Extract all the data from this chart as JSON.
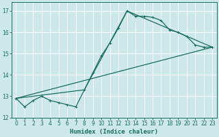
{
  "title": "",
  "xlabel": "Humidex (Indice chaleur)",
  "xlim": [
    -0.5,
    23.5
  ],
  "ylim": [
    12.0,
    17.4
  ],
  "yticks": [
    12,
    13,
    14,
    15,
    16,
    17
  ],
  "xticks": [
    0,
    1,
    2,
    3,
    4,
    5,
    6,
    7,
    8,
    9,
    10,
    11,
    12,
    13,
    14,
    15,
    16,
    17,
    18,
    19,
    20,
    21,
    22,
    23
  ],
  "background_color": "#cce8e8",
  "grid_color": "#ffffff",
  "line_color": "#1a6b5a",
  "curve1_x": [
    0,
    1,
    2,
    3,
    4,
    5,
    6,
    7,
    8,
    9,
    10,
    11,
    12,
    13,
    14,
    15,
    16,
    17,
    18,
    19,
    20,
    21,
    22,
    23
  ],
  "curve1_y": [
    12.9,
    12.5,
    12.8,
    13.0,
    12.8,
    12.7,
    12.6,
    12.5,
    13.3,
    14.1,
    14.9,
    15.5,
    16.2,
    17.0,
    16.75,
    16.75,
    16.7,
    16.55,
    16.1,
    16.0,
    15.8,
    15.4,
    15.3,
    15.3
  ],
  "line1_x": [
    0,
    23
  ],
  "line1_y": [
    12.9,
    15.3
  ],
  "line2_x": [
    0,
    8,
    13,
    23
  ],
  "line2_y": [
    12.9,
    13.3,
    17.0,
    15.3
  ]
}
